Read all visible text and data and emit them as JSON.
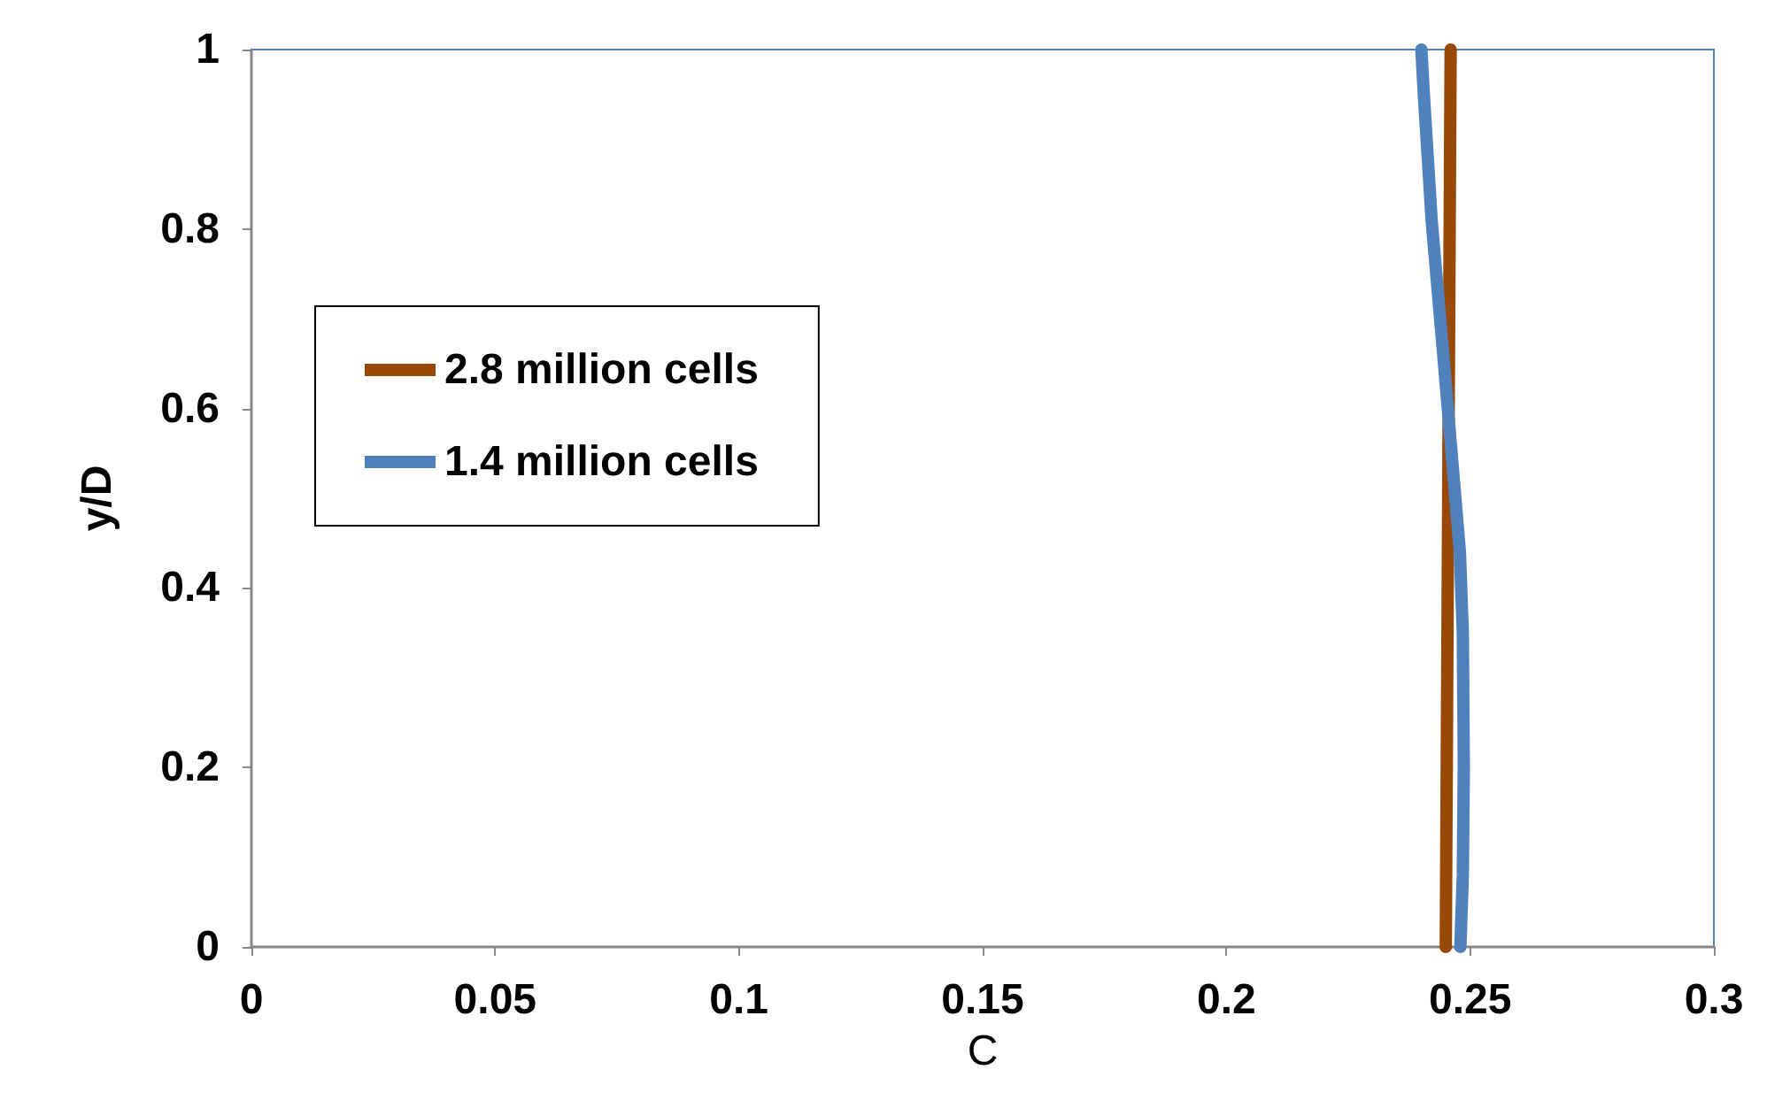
{
  "chart_data": {
    "type": "line",
    "xlabel": "C",
    "ylabel": "y/D",
    "xlim": [
      0,
      0.3
    ],
    "ylim": [
      0,
      1
    ],
    "xticks": [
      0,
      0.05,
      0.1,
      0.15,
      0.2,
      0.25,
      0.3
    ],
    "yticks": [
      0,
      0.2,
      0.4,
      0.6,
      0.8,
      1
    ],
    "grid": false,
    "legend": "left",
    "marker": "none",
    "line_style": "solid",
    "series": [
      {
        "name": "2.8 million cells",
        "color": "#984807",
        "x": [
          0.245,
          0.246
        ],
        "values": [
          0,
          1
        ]
      },
      {
        "name": "1.4 million cells",
        "color": "#4f81bd",
        "x": [
          0.248,
          0.2485,
          0.2487,
          0.2485,
          0.2479,
          0.2448,
          0.2421,
          0.2405,
          0.24
        ],
        "values": [
          0,
          0.08,
          0.2,
          0.35,
          0.44,
          0.64,
          0.81,
          0.95,
          1
        ]
      }
    ]
  }
}
